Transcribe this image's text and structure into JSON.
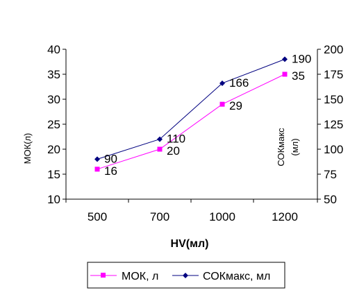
{
  "chart_data": {
    "type": "line",
    "xlabel": "HV(мл)",
    "ylabel_left": "МОК(л)",
    "ylabel_right_line1": "СОКмакс",
    "ylabel_right_line2": "(мл)",
    "categories": [
      "500",
      "700",
      "1000",
      "1200"
    ],
    "ylim_left": [
      10,
      40
    ],
    "yticks_left": [
      10,
      15,
      20,
      25,
      30,
      35,
      40
    ],
    "ylim_right": [
      50,
      200
    ],
    "yticks_right": [
      50,
      75,
      100,
      125,
      150,
      175,
      200
    ],
    "grid": false,
    "legend_position": "bottom",
    "series": [
      {
        "name": "МОК, л",
        "axis": "left",
        "color": "#ff00ff",
        "marker": "square",
        "values": [
          16,
          20,
          29,
          35
        ],
        "labels": [
          "16",
          "20",
          "29",
          "35"
        ]
      },
      {
        "name": "СОКмакс, мл",
        "axis": "right",
        "color": "#000080",
        "marker": "diamond",
        "values": [
          90,
          110,
          166,
          190
        ],
        "labels": [
          "90",
          "110",
          "166",
          "190"
        ]
      }
    ]
  }
}
